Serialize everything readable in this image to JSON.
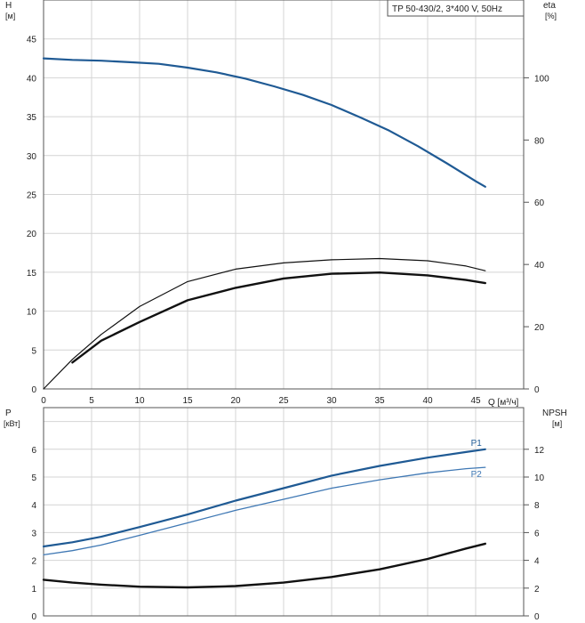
{
  "chart_data": [
    {
      "type": "line",
      "title": "TP 50-430/2, 3*400 V, 50Hz",
      "y_left_label": "H",
      "y_left_unit": "[м]",
      "y_right_label": "eta",
      "y_right_unit": "[%]",
      "x_label": "Q [м³/ч]",
      "xlim": [
        0,
        50
      ],
      "ylim_left": [
        0,
        50
      ],
      "ylim_right": [
        0,
        125
      ],
      "x_ticks": [
        "0",
        "5",
        "10",
        "15",
        "20",
        "25",
        "30",
        "35",
        "40",
        "45"
      ],
      "y_left_ticks": [
        "0",
        "5",
        "10",
        "15",
        "20",
        "25",
        "30",
        "35",
        "40",
        "45"
      ],
      "y_right_ticks": [
        "0",
        "20",
        "40",
        "60",
        "80",
        "100"
      ],
      "grid": true,
      "series": [
        {
          "axis": "left",
          "color": "#1f5a94",
          "x": [
            0,
            3,
            6,
            9,
            12,
            15,
            18,
            21,
            24,
            27,
            30,
            33,
            36,
            39,
            42,
            45,
            46
          ],
          "y": [
            42.5,
            42.3,
            42.2,
            42.0,
            41.8,
            41.3,
            40.7,
            39.9,
            38.9,
            37.8,
            36.5,
            34.9,
            33.2,
            31.2,
            29.0,
            26.7,
            26.0
          ]
        },
        {
          "axis": "right",
          "color": "#111111",
          "x": [
            0,
            3,
            6,
            10,
            15,
            20,
            25,
            30,
            35,
            40,
            44,
            46
          ],
          "y": [
            0,
            9.5,
            17.5,
            26.5,
            34.5,
            38.5,
            40.5,
            41.5,
            41.9,
            41.2,
            39.5,
            38.0
          ]
        },
        {
          "axis": "right",
          "color": "#111111",
          "x": [
            3,
            6,
            10,
            15,
            20,
            25,
            30,
            35,
            40,
            44,
            46
          ],
          "y": [
            8.5,
            15.5,
            21.5,
            28.5,
            32.5,
            35.5,
            37.0,
            37.4,
            36.5,
            35.0,
            34.0
          ]
        }
      ]
    },
    {
      "type": "line",
      "y_left_label": "P",
      "y_left_unit": "[кВт]",
      "y_right_label": "NPSH",
      "y_right_unit": "[м]",
      "xlim": [
        0,
        50
      ],
      "ylim_left": [
        0,
        7.5
      ],
      "ylim_right": [
        0,
        15
      ],
      "y_left_ticks": [
        "0",
        "1",
        "2",
        "3",
        "4",
        "5",
        "6"
      ],
      "y_right_ticks": [
        "0",
        "2",
        "4",
        "6",
        "8",
        "10",
        "12"
      ],
      "grid": true,
      "series": [
        {
          "name": "P1",
          "axis": "left",
          "color": "#1f5a94",
          "x": [
            0,
            3,
            6,
            10,
            15,
            20,
            25,
            30,
            35,
            40,
            44,
            46
          ],
          "y": [
            2.5,
            2.65,
            2.85,
            3.2,
            3.65,
            4.15,
            4.6,
            5.05,
            5.4,
            5.7,
            5.9,
            6.0
          ]
        },
        {
          "name": "P2",
          "axis": "left",
          "color": "#3f78b4",
          "x": [
            0,
            3,
            6,
            10,
            15,
            20,
            25,
            30,
            35,
            40,
            44,
            46
          ],
          "y": [
            2.2,
            2.35,
            2.55,
            2.9,
            3.35,
            3.8,
            4.2,
            4.6,
            4.9,
            5.15,
            5.3,
            5.35
          ]
        },
        {
          "axis": "right",
          "color": "#111111",
          "x": [
            0,
            3,
            6,
            10,
            15,
            20,
            25,
            30,
            35,
            40,
            44,
            46
          ],
          "y": [
            2.6,
            2.4,
            2.25,
            2.1,
            2.05,
            2.15,
            2.4,
            2.8,
            3.35,
            4.1,
            4.85,
            5.2
          ]
        }
      ]
    }
  ]
}
